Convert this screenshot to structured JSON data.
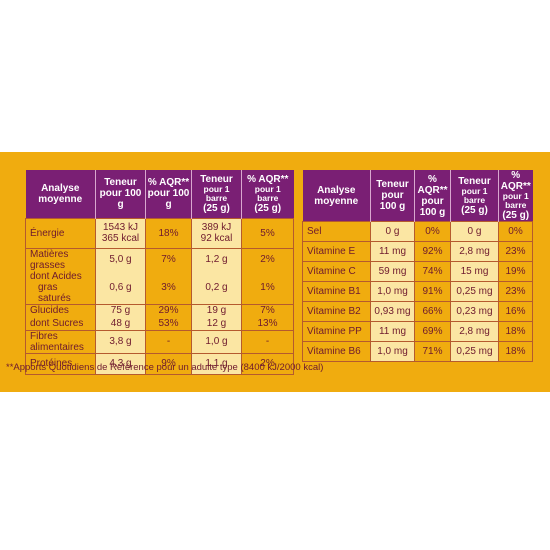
{
  "left": {
    "headers": {
      "analyse": "Analyse moyenne",
      "teneur100": "Teneur pour 100 g",
      "aqr100": "% AQR** pour 100 g",
      "teneurBarre_l1": "Teneur",
      "teneurBarre_l2": "pour 1 barre",
      "teneurBarre_l3": "(25 g)",
      "aqrBarre_l1": "% AQR**",
      "aqrBarre_l2": "pour 1 barre",
      "aqrBarre_l3": "(25 g)"
    },
    "rows": {
      "energie": {
        "label": "Énergie",
        "t100": "1543 kJ",
        "t100b": "365 kcal",
        "a100": "18%",
        "tb": "389 kJ",
        "tbb": "92 kcal",
        "ab": "5%"
      },
      "matieres": {
        "label": "Matières grasses",
        "t100": "5,0 g",
        "a100": "7%",
        "tb": "1,2 g",
        "ab": "2%"
      },
      "acides": {
        "label1": "dont Acides",
        "label2": "gras saturés",
        "t100": "0,6 g",
        "a100": "3%",
        "tb": "0,2 g",
        "ab": "1%"
      },
      "glucides": {
        "label": "Glucides",
        "t100": "75 g",
        "a100": "29%",
        "tb": "19 g",
        "ab": "7%"
      },
      "sucres": {
        "label": "dont Sucres",
        "t100": "48 g",
        "a100": "53%",
        "tb": "12 g",
        "ab": "13%"
      },
      "fibres": {
        "label": "Fibres alimentaires",
        "t100": "3,8 g",
        "a100": "-",
        "tb": "1,0 g",
        "ab": "-"
      },
      "proteines": {
        "label": "Protéines",
        "t100": "4,3 g",
        "a100": "9%",
        "tb": "1,1 g",
        "ab": "2%"
      }
    }
  },
  "right": {
    "headers": {
      "analyse": "Analyse moyenne",
      "teneur100": "Teneur pour 100 g",
      "aqr100": "% AQR** pour 100 g",
      "teneurBarre_l1": "Teneur",
      "teneurBarre_l2": "pour 1 barre",
      "teneurBarre_l3": "(25 g)",
      "aqrBarre_l1": "% AQR**",
      "aqrBarre_l2": "pour 1 barre",
      "aqrBarre_l3": "(25 g)"
    },
    "rows": [
      {
        "label": "Sel",
        "t100": "0 g",
        "a100": "0%",
        "tb": "0 g",
        "ab": "0%"
      },
      {
        "label": "Vitamine E",
        "t100": "11 mg",
        "a100": "92%",
        "tb": "2,8 mg",
        "ab": "23%"
      },
      {
        "label": "Vitamine C",
        "t100": "59 mg",
        "a100": "74%",
        "tb": "15 mg",
        "ab": "19%"
      },
      {
        "label": "Vitamine B1",
        "t100": "1,0 mg",
        "a100": "91%",
        "tb": "0,25 mg",
        "ab": "23%"
      },
      {
        "label": "Vitamine B2",
        "t100": "0,93 mg",
        "a100": "66%",
        "tb": "0,23 mg",
        "ab": "16%"
      },
      {
        "label": "Vitamine PP",
        "t100": "11 mg",
        "a100": "69%",
        "tb": "2,8 mg",
        "ab": "18%"
      },
      {
        "label": "Vitamine B6",
        "t100": "1,0 mg",
        "a100": "71%",
        "tb": "0,25 mg",
        "ab": "18%"
      }
    ]
  },
  "footnote": "**Apports Quotidiens de Référence pour un adulte type (8400 kJ/2000 kcal)"
}
